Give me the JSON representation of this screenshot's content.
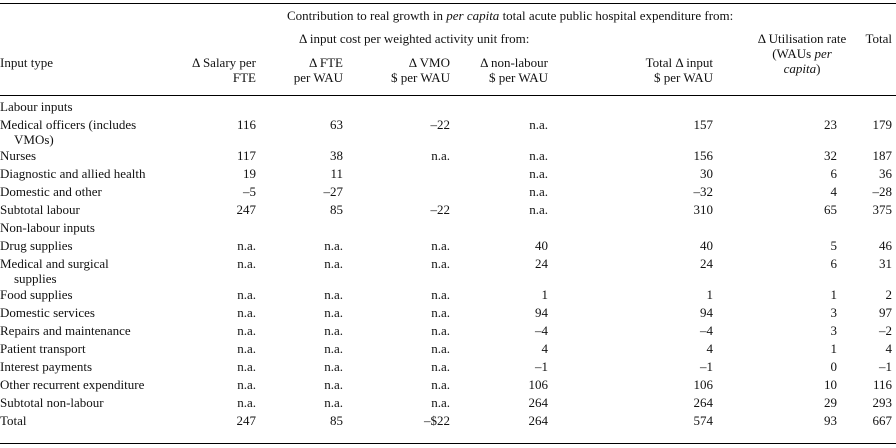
{
  "header": {
    "super_prefix": "Contribution to real growth in ",
    "super_italic": "per capita",
    "super_suffix": " total acute public hospital expenditure from:",
    "sub_super": "Δ input cost per weighted activity unit from:",
    "columns": {
      "input_type": "Input type",
      "salary_l1": "Δ Salary per",
      "salary_l2": "FTE",
      "fte_l1": "Δ FTE",
      "fte_l2": "per WAU",
      "vmo_l1": "Δ VMO",
      "vmo_l2": "$ per WAU",
      "nonlab_l1": "Δ non-labour",
      "nonlab_l2": "$ per WAU",
      "total_input_l1": "Total Δ input",
      "total_input_l2": "$ per WAU",
      "util_l1": "Δ Utilisation rate",
      "util_l2_prefix": "(WAUs ",
      "util_l2_italic": "per",
      "util_l3_italic": "capita",
      "util_l3_suffix": ")",
      "total": "Total"
    }
  },
  "rows": [
    {
      "label": "Labour inputs",
      "section": true
    },
    {
      "label": "Medical officers (includes",
      "label2": "VMOs)",
      "values": [
        "116",
        "63",
        "–22",
        "n.a.",
        "157",
        "23",
        "179"
      ]
    },
    {
      "label": "Nurses",
      "values": [
        "117",
        "38",
        "n.a.",
        "n.a.",
        "156",
        "32",
        "187"
      ]
    },
    {
      "label": "Diagnostic and allied health",
      "values": [
        "19",
        "11",
        "",
        "n.a.",
        "30",
        "6",
        "36"
      ]
    },
    {
      "label": "Domestic and other",
      "values": [
        "–5",
        "–27",
        "",
        "n.a.",
        "–32",
        "4",
        "–28"
      ]
    },
    {
      "label": "Subtotal labour",
      "values": [
        "247",
        "85",
        "–22",
        "n.a.",
        "310",
        "65",
        "375"
      ]
    },
    {
      "label": "Non-labour inputs",
      "section": true
    },
    {
      "label": "Drug supplies",
      "values": [
        "n.a.",
        "n.a.",
        "n.a.",
        "40",
        "40",
        "5",
        "46"
      ]
    },
    {
      "label": "Medical and surgical",
      "label2": "supplies",
      "values": [
        "n.a.",
        "n.a.",
        "n.a.",
        "24",
        "24",
        "6",
        "31"
      ]
    },
    {
      "label": "Food supplies",
      "values": [
        "n.a.",
        "n.a.",
        "n.a.",
        "1",
        "1",
        "1",
        "2"
      ]
    },
    {
      "label": "Domestic services",
      "values": [
        "n.a.",
        "n.a.",
        "n.a.",
        "94",
        "94",
        "3",
        "97"
      ]
    },
    {
      "label": "Repairs and maintenance",
      "values": [
        "n.a.",
        "n.a.",
        "n.a.",
        "–4",
        "–4",
        "3",
        "–2"
      ]
    },
    {
      "label": "Patient transport",
      "values": [
        "n.a.",
        "n.a.",
        "n.a.",
        "4",
        "4",
        "1",
        "4"
      ]
    },
    {
      "label": "Interest payments",
      "values": [
        "n.a.",
        "n.a.",
        "n.a.",
        "–1",
        "–1",
        "0",
        "–1"
      ]
    },
    {
      "label": "Other recurrent expenditure",
      "values": [
        "n.a.",
        "n.a.",
        "n.a.",
        "106",
        "106",
        "10",
        "116"
      ]
    },
    {
      "label": "Subtotal non-labour",
      "values": [
        "n.a.",
        "n.a.",
        "n.a.",
        "264",
        "264",
        "29",
        "293"
      ]
    },
    {
      "label": "Total",
      "values": [
        "247",
        "85",
        "–$22",
        "264",
        "574",
        "93",
        "667"
      ]
    }
  ]
}
